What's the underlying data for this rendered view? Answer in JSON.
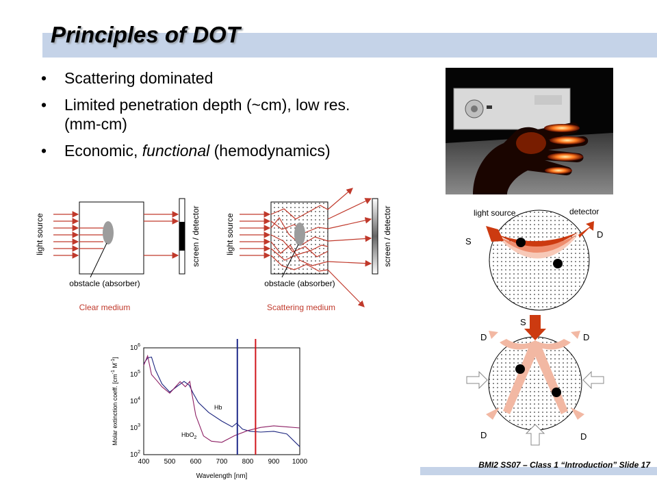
{
  "slide": {
    "title": "Principles of DOT",
    "bullets": [
      {
        "pre": "Scattering dominated",
        "em": "",
        "post": ""
      },
      {
        "pre": "Limited penetration depth (~cm), low res. (mm-cm)",
        "em": "",
        "post": ""
      },
      {
        "pre": "Economic, ",
        "em": "functional",
        "post": " (hemodynamics)"
      }
    ],
    "bullet_char": "•",
    "footer": "BMI2 SS07 – Class 1 “Introduction” Slide 17"
  },
  "clear_diagram": {
    "source_label": "light source",
    "screen_label": "screen / detector",
    "obstacle_label": "obstacle (absorber)",
    "caption": "Clear medium"
  },
  "scatter_diagram": {
    "source_label": "light source",
    "screen_label": "screen / detector",
    "obstacle_label": "obstacle (absorber)",
    "caption": "Scattering medium"
  },
  "geometry_1": {
    "source_label": "light source",
    "detector_label": "detector",
    "s": "S",
    "d": "D"
  },
  "geometry_2": {
    "s": "S",
    "d_top_left": "D",
    "d_top_right": "D",
    "d_bottom_left": "D",
    "d_bottom_right": "D"
  },
  "spectrum_plot": {
    "xlabel": "Wavelength [nm]",
    "ylabel": "Molar extinction coeff. [cm",
    "ylabel_exp": "-1",
    "ylabel_mid": " M",
    "ylabel_exp2": "-1",
    "ylabel_end": "]",
    "x_ticks": [
      "400",
      "500",
      "600",
      "700",
      "800",
      "900",
      "1000"
    ],
    "y_ticks": [
      {
        "base": "10",
        "exp": "2"
      },
      {
        "base": "10",
        "exp": "3"
      },
      {
        "base": "10",
        "exp": "4"
      },
      {
        "base": "10",
        "exp": "5"
      },
      {
        "base": "10",
        "exp": "6"
      }
    ],
    "hb_label": "Hb",
    "hbo2_label": "HbO",
    "hbo2_sub": "2",
    "colors": {
      "hb": "#1a237e",
      "hbo2": "#8b1c62",
      "line_blue": "#1f2a8a",
      "line_red": "#d0131a"
    }
  },
  "chart_data": {
    "type": "line",
    "xlabel": "Wavelength [nm]",
    "ylabel": "Molar extinction coeff. [cm-1 M-1]",
    "xlim": [
      400,
      1000
    ],
    "ylim": [
      100,
      1000000
    ],
    "yscale": "log",
    "markers": [
      760,
      830
    ],
    "series": [
      {
        "name": "Hb",
        "x": [
          400,
          415,
          430,
          445,
          470,
          500,
          530,
          555,
          575,
          590,
          610,
          650,
          700,
          740,
          757,
          780,
          810,
          850,
          900,
          950,
          1000
        ],
        "y": [
          250000,
          420000,
          450000,
          150000,
          45000,
          22000,
          37000,
          55000,
          40000,
          20000,
          9000,
          3800,
          1800,
          1100,
          1500,
          900,
          750,
          700,
          750,
          600,
          200
        ]
      },
      {
        "name": "HbO2",
        "x": [
          400,
          415,
          430,
          450,
          470,
          500,
          540,
          560,
          577,
          600,
          630,
          660,
          700,
          750,
          800,
          850,
          900,
          950,
          1000
        ],
        "y": [
          220000,
          500000,
          100000,
          60000,
          35000,
          20000,
          54000,
          35000,
          55000,
          3000,
          500,
          320,
          290,
          520,
          800,
          1050,
          1200,
          1100,
          1000
        ]
      }
    ]
  }
}
